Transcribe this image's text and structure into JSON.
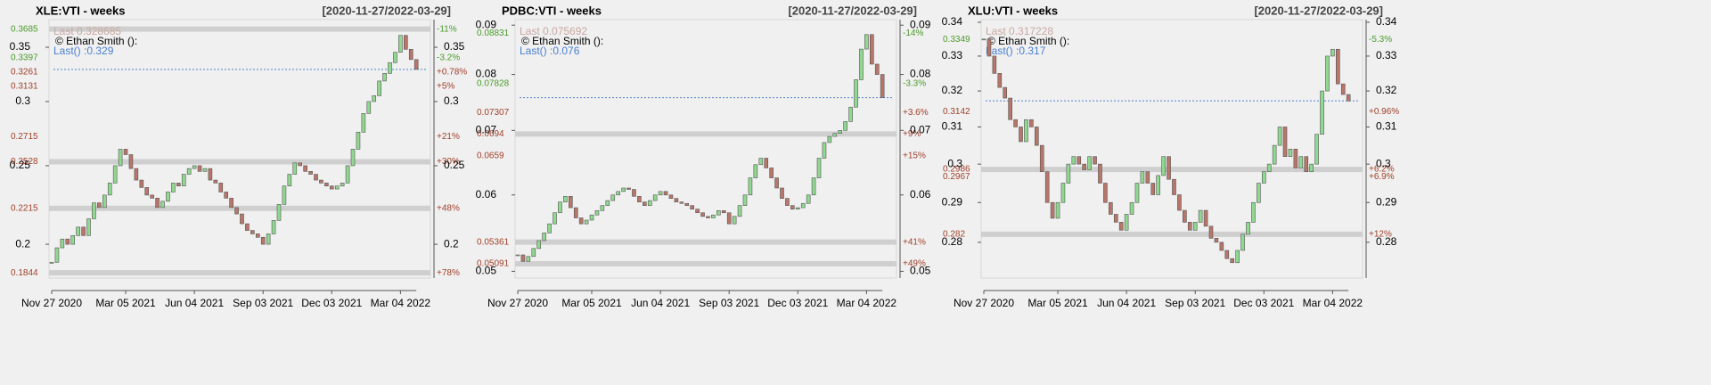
{
  "chart_data": [
    {
      "type": "candlestick",
      "title": "XLE:VTI - weeks",
      "subtitle": "[2020-11-27/2022-03-29]",
      "log": true,
      "ylim": [
        0.1817,
        0.3786
      ],
      "yticks": [
        0.35,
        0.3,
        0.25,
        0.2
      ],
      "categories": [
        "Nov 27 2020",
        null,
        null,
        null,
        null,
        null,
        null,
        null,
        null,
        null,
        null,
        null,
        null,
        null,
        "Mar 05 2021",
        null,
        null,
        null,
        null,
        null,
        null,
        null,
        null,
        null,
        null,
        null,
        null,
        "Jun 04 2021",
        null,
        null,
        null,
        null,
        null,
        null,
        null,
        null,
        null,
        null,
        null,
        null,
        "Sep 03 2021",
        null,
        null,
        null,
        null,
        null,
        null,
        null,
        null,
        null,
        null,
        null,
        null,
        "Dec 03 2021",
        null,
        null,
        null,
        null,
        null,
        null,
        null,
        null,
        null,
        null,
        null,
        null,
        "Mar 04 2022",
        null,
        null,
        null
      ],
      "close": [
        0.19,
        0.198,
        0.203,
        0.2,
        0.205,
        0.21,
        0.205,
        0.215,
        0.225,
        0.222,
        0.23,
        0.238,
        0.25,
        0.262,
        0.258,
        0.248,
        0.24,
        0.235,
        0.23,
        0.228,
        0.222,
        0.226,
        0.232,
        0.238,
        0.236,
        0.244,
        0.248,
        0.25,
        0.246,
        0.248,
        0.24,
        0.238,
        0.232,
        0.228,
        0.222,
        0.218,
        0.212,
        0.208,
        0.206,
        0.204,
        0.2,
        0.206,
        0.214,
        0.224,
        0.236,
        0.244,
        0.252,
        0.25,
        0.246,
        0.244,
        0.24,
        0.238,
        0.236,
        0.234,
        0.236,
        0.238,
        0.25,
        0.262,
        0.275,
        0.29,
        0.3,
        0.305,
        0.318,
        0.325,
        0.335,
        0.345,
        0.362,
        0.348,
        0.338,
        0.3287
      ],
      "last": {
        "value": 0.328685,
        "label": "Last 0.328685"
      },
      "credit": "© Ethan Smith ():",
      "last_note": "Last() :0.329",
      "levels": [
        {
          "value": 0.3685,
          "change": "-11%",
          "band": true
        },
        {
          "value": 0.3397,
          "change": "-3.2%",
          "band": false
        },
        {
          "value": 0.3261,
          "change": "+0.78%",
          "band": false
        },
        {
          "value": 0.3131,
          "change": "+5%",
          "band": false
        },
        {
          "value": 0.2715,
          "change": "+21%",
          "band": false
        },
        {
          "value": 0.2528,
          "change": "+30%",
          "band": true
        },
        {
          "value": 0.2215,
          "change": "+48%",
          "band": true
        },
        {
          "value": 0.1844,
          "change": "+78%",
          "band": true
        }
      ],
      "up_color": "#90d890",
      "down_color": "#b8766a"
    },
    {
      "type": "candlestick",
      "title": "PDBC:VTI - weeks",
      "subtitle": "[2020-11-27/2022-03-29]",
      "log": true,
      "ylim": [
        0.0492,
        0.0912
      ],
      "yticks": [
        0.09,
        0.08,
        0.07,
        0.06,
        0.05
      ],
      "categories": [
        "Nov 27 2020",
        null,
        null,
        null,
        null,
        null,
        null,
        null,
        null,
        null,
        null,
        null,
        null,
        null,
        "Mar 05 2021",
        null,
        null,
        null,
        null,
        null,
        null,
        null,
        null,
        null,
        null,
        null,
        null,
        "Jun 04 2021",
        null,
        null,
        null,
        null,
        null,
        null,
        null,
        null,
        null,
        null,
        null,
        null,
        "Sep 03 2021",
        null,
        null,
        null,
        null,
        null,
        null,
        null,
        null,
        null,
        null,
        null,
        null,
        "Dec 03 2021",
        null,
        null,
        null,
        null,
        null,
        null,
        null,
        null,
        null,
        null,
        null,
        null,
        "Mar 04 2022",
        null,
        null,
        null
      ],
      "close": [
        0.052,
        0.0512,
        0.0518,
        0.0528,
        0.0538,
        0.0548,
        0.056,
        0.0575,
        0.059,
        0.0598,
        0.0582,
        0.0568,
        0.056,
        0.0565,
        0.0572,
        0.0578,
        0.0585,
        0.0592,
        0.06,
        0.0605,
        0.061,
        0.0608,
        0.0598,
        0.059,
        0.0585,
        0.0592,
        0.06,
        0.0605,
        0.06,
        0.0595,
        0.059,
        0.0588,
        0.0585,
        0.058,
        0.0575,
        0.057,
        0.0568,
        0.0572,
        0.0578,
        0.0575,
        0.056,
        0.057,
        0.0585,
        0.06,
        0.0625,
        0.0645,
        0.0655,
        0.064,
        0.0625,
        0.061,
        0.0595,
        0.0585,
        0.058,
        0.0582,
        0.0588,
        0.06,
        0.0625,
        0.0655,
        0.068,
        0.069,
        0.0695,
        0.07,
        0.0715,
        0.074,
        0.079,
        0.085,
        0.088,
        0.082,
        0.08,
        0.0757
      ],
      "last": {
        "value": 0.075692,
        "label": "Last 0.075692"
      },
      "credit": "© Ethan Smith ():",
      "last_note": "Last() :0.076",
      "levels": [
        {
          "value": 0.08831,
          "change": "-14%",
          "band": false
        },
        {
          "value": 0.07828,
          "change": "-3.3%",
          "band": false
        },
        {
          "value": 0.07307,
          "change": "+3.6%",
          "band": false
        },
        {
          "value": 0.0694,
          "change": "+9%",
          "band": true
        },
        {
          "value": 0.0659,
          "change": "+15%",
          "band": false
        },
        {
          "value": 0.05361,
          "change": "+41%",
          "band": true
        },
        {
          "value": 0.05091,
          "change": "+49%",
          "band": true
        }
      ],
      "up_color": "#90d890",
      "down_color": "#b8766a"
    },
    {
      "type": "candlestick",
      "title": "XLU:VTI - weeks",
      "subtitle": "[2020-11-27/2022-03-29]",
      "log": true,
      "ylim": [
        0.2713,
        0.3408
      ],
      "yticks": [
        0.34,
        0.33,
        0.32,
        0.31,
        0.3,
        0.29,
        0.28
      ],
      "categories": [
        "Nov 27 2020",
        null,
        null,
        null,
        null,
        null,
        null,
        null,
        null,
        null,
        null,
        null,
        null,
        null,
        "Mar 05 2021",
        null,
        null,
        null,
        null,
        null,
        null,
        null,
        null,
        null,
        null,
        null,
        null,
        "Jun 04 2021",
        null,
        null,
        null,
        null,
        null,
        null,
        null,
        null,
        null,
        null,
        null,
        null,
        "Sep 03 2021",
        null,
        null,
        null,
        null,
        null,
        null,
        null,
        null,
        null,
        null,
        null,
        null,
        "Dec 03 2021",
        null,
        null,
        null,
        null,
        null,
        null,
        null,
        null,
        null,
        null,
        null,
        null,
        "Mar 04 2022",
        null,
        null,
        null
      ],
      "close": [
        0.335,
        0.33,
        0.325,
        0.321,
        0.318,
        0.312,
        0.31,
        0.306,
        0.312,
        0.31,
        0.305,
        0.298,
        0.29,
        0.286,
        0.29,
        0.295,
        0.3,
        0.302,
        0.3,
        0.2985,
        0.302,
        0.3,
        0.295,
        0.29,
        0.287,
        0.285,
        0.283,
        0.287,
        0.29,
        0.295,
        0.298,
        0.295,
        0.292,
        0.297,
        0.302,
        0.296,
        0.292,
        0.288,
        0.285,
        0.283,
        0.285,
        0.288,
        0.284,
        0.281,
        0.28,
        0.278,
        0.276,
        0.275,
        0.278,
        0.282,
        0.285,
        0.29,
        0.295,
        0.298,
        0.3,
        0.305,
        0.31,
        0.302,
        0.304,
        0.299,
        0.302,
        0.298,
        0.3,
        0.308,
        0.32,
        0.33,
        0.332,
        0.322,
        0.319,
        0.3172
      ],
      "last": {
        "value": 0.317228,
        "label": "Last 0.317228"
      },
      "credit": "© Ethan Smith ():",
      "last_note": "Last() :0.317",
      "levels": [
        {
          "value": 0.3349,
          "change": "-5.3%",
          "band": false
        },
        {
          "value": 0.3142,
          "change": "+0.96%",
          "band": false
        },
        {
          "value": 0.2986,
          "change": "+6.2%",
          "band": true
        },
        {
          "value": 0.2967,
          "change": "+6.9%",
          "band": false
        },
        {
          "value": 0.282,
          "change": "+12%",
          "band": true
        }
      ],
      "up_color": "#90d890",
      "down_color": "#b8766a"
    }
  ]
}
